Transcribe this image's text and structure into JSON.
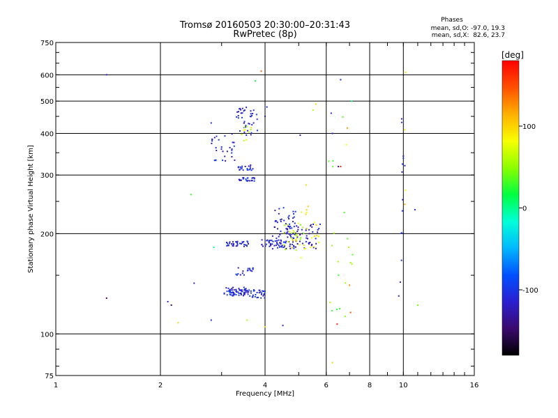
{
  "chart_data": {
    "type": "scatter",
    "title": "Tromsø 20160503 20:30:00–20:31:43",
    "subtitle": "RwPretec (8p)",
    "xlabel": "Frequency [MHz]",
    "ylabel": "Stationary phase Virtual Height [km]",
    "x_scale": "log",
    "y_scale": "log",
    "xlim": [
      1,
      16
    ],
    "ylim": [
      75,
      750
    ],
    "x_ticks": [
      1,
      2,
      4,
      6,
      8,
      10,
      16
    ],
    "x_tick_labels": [
      "1",
      "2",
      "4",
      "6",
      "8",
      "10",
      "16"
    ],
    "y_ticks": [
      75,
      100,
      200,
      300,
      400,
      500,
      600,
      750
    ],
    "y_tick_labels": [
      "75",
      "100",
      "200",
      "300",
      "400",
      "500",
      "600",
      "750"
    ],
    "grid": true,
    "phase_box": {
      "title": "Phases",
      "line1": "mean, sd,O: -97.0, 19.3",
      "line2": "mean, sd,X:  82.6, 23.7"
    },
    "colorbar": {
      "label": "[deg]",
      "ticks": [
        100,
        0,
        -100
      ],
      "tick_labels": [
        "100",
        "0",
        "-100"
      ],
      "range": [
        -180,
        180
      ],
      "colors": [
        "#000000",
        "#3b0a6e",
        "#2a1fd0",
        "#0050ff",
        "#00b8ff",
        "#00ffd8",
        "#00ff40",
        "#8cff00",
        "#f8ff00",
        "#ffb000",
        "#ff5000",
        "#ff0000"
      ]
    },
    "clusters": [
      {
        "x": [
          3.05,
          3.6
        ],
        "h": [
          130,
          138
        ],
        "phase": -110,
        "n": 70
      },
      {
        "x": [
          3.6,
          4.0
        ],
        "h": [
          128,
          136
        ],
        "phase": -105,
        "n": 30
      },
      {
        "x": [
          3.3,
          3.7
        ],
        "h": [
          150,
          160
        ],
        "phase": -115,
        "n": 18
      },
      {
        "x": [
          3.1,
          3.6
        ],
        "h": [
          183,
          190
        ],
        "phase": -110,
        "n": 35
      },
      {
        "x": [
          3.9,
          4.6
        ],
        "h": [
          182,
          192
        ],
        "phase": -110,
        "n": 40
      },
      {
        "x": [
          4.2,
          4.9
        ],
        "h": [
          180,
          240
        ],
        "phase": -112,
        "n": 55
      },
      {
        "x": [
          4.6,
          5.8
        ],
        "h": [
          180,
          215
        ],
        "phase": -120,
        "n": 60
      },
      {
        "x": [
          4.5,
          5.2
        ],
        "h": [
          178,
          215
        ],
        "phase": 60,
        "n": 25
      },
      {
        "x": [
          4.7,
          5.8
        ],
        "h": [
          165,
          245
        ],
        "phase": 95,
        "n": 25
      },
      {
        "x": [
          3.35,
          3.75
        ],
        "h": [
          285,
          295
        ],
        "phase": -110,
        "n": 25
      },
      {
        "x": [
          3.35,
          3.7
        ],
        "h": [
          310,
          322
        ],
        "phase": -110,
        "n": 20
      },
      {
        "x": [
          2.8,
          3.3
        ],
        "h": [
          330,
          400
        ],
        "phase": -110,
        "n": 30
      },
      {
        "x": [
          3.3,
          3.8
        ],
        "h": [
          395,
          480
        ],
        "phase": -110,
        "n": 40
      },
      {
        "x": [
          3.4,
          3.7
        ],
        "h": [
          380,
          420
        ],
        "phase": 70,
        "n": 10
      },
      {
        "x": [
          9.8,
          10.05
        ],
        "h": [
          140,
          490
        ],
        "phase": -110,
        "n": 12
      },
      {
        "x": [
          6.1,
          7.2
        ],
        "h": [
          100,
          480
        ],
        "phase": 40,
        "n": 20
      }
    ],
    "points": [
      {
        "x": 1.4,
        "h": 600,
        "phase": -110
      },
      {
        "x": 1.4,
        "h": 128,
        "phase": -150
      },
      {
        "x": 2.1,
        "h": 125,
        "phase": -110
      },
      {
        "x": 2.15,
        "h": 122,
        "phase": -150
      },
      {
        "x": 2.25,
        "h": 108,
        "phase": 100
      },
      {
        "x": 2.45,
        "h": 262,
        "phase": 30
      },
      {
        "x": 2.5,
        "h": 142,
        "phase": -110
      },
      {
        "x": 2.8,
        "h": 110,
        "phase": -110
      },
      {
        "x": 2.8,
        "h": 430,
        "phase": -110
      },
      {
        "x": 2.85,
        "h": 182,
        "phase": 0
      },
      {
        "x": 3.55,
        "h": 110,
        "phase": 60
      },
      {
        "x": 4.0,
        "h": 105,
        "phase": 100
      },
      {
        "x": 4.5,
        "h": 106,
        "phase": -110
      },
      {
        "x": 3.9,
        "h": 615,
        "phase": 140
      },
      {
        "x": 3.75,
        "h": 575,
        "phase": 20
      },
      {
        "x": 4.05,
        "h": 480,
        "phase": -110
      },
      {
        "x": 4.0,
        "h": 450,
        "phase": -110
      },
      {
        "x": 5.6,
        "h": 490,
        "phase": 100
      },
      {
        "x": 5.5,
        "h": 470,
        "phase": 60
      },
      {
        "x": 5.05,
        "h": 395,
        "phase": -130
      },
      {
        "x": 5.25,
        "h": 280,
        "phase": 100
      },
      {
        "x": 6.2,
        "h": 460,
        "phase": -110
      },
      {
        "x": 6.25,
        "h": 400,
        "phase": -110
      },
      {
        "x": 6.6,
        "h": 580,
        "phase": -110
      },
      {
        "x": 6.5,
        "h": 318,
        "phase": -140
      },
      {
        "x": 6.6,
        "h": 318,
        "phase": 170
      },
      {
        "x": 6.9,
        "h": 415,
        "phase": 120
      },
      {
        "x": 7.1,
        "h": 500,
        "phase": 0
      },
      {
        "x": 6.85,
        "h": 370,
        "phase": 80
      },
      {
        "x": 6.25,
        "h": 82,
        "phase": 100
      },
      {
        "x": 6.45,
        "h": 107,
        "phase": 170
      },
      {
        "x": 7.05,
        "h": 116,
        "phase": 150
      },
      {
        "x": 7.0,
        "h": 140,
        "phase": 130
      },
      {
        "x": 9.7,
        "h": 130,
        "phase": -130
      },
      {
        "x": 10.1,
        "h": 245,
        "phase": 120
      },
      {
        "x": 10.15,
        "h": 270,
        "phase": 80
      },
      {
        "x": 10.15,
        "h": 610,
        "phase": 100
      },
      {
        "x": 10.1,
        "h": 320,
        "phase": -110
      },
      {
        "x": 10.1,
        "h": 410,
        "phase": 90
      },
      {
        "x": 10.8,
        "h": 236,
        "phase": -110
      },
      {
        "x": 11.0,
        "h": 122,
        "phase": 40
      }
    ]
  }
}
